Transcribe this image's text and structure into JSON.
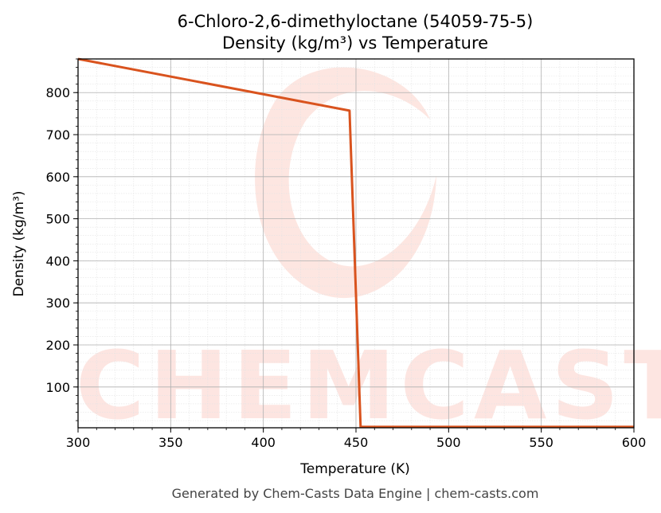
{
  "chart_data": {
    "type": "line",
    "title": "6-Chloro-2,6-dimethyloctane (54059-75-5)",
    "subtitle": "Density (kg/m³) vs Temperature",
    "xlabel": "Temperature (K)",
    "ylabel": "Density (kg/m³)",
    "xlim": [
      300,
      600
    ],
    "ylim": [
      3,
      880
    ],
    "xticks": [
      300,
      350,
      400,
      450,
      500,
      550,
      600
    ],
    "yticks": [
      100,
      200,
      300,
      400,
      500,
      600,
      700,
      800
    ],
    "grid": true,
    "minor_grid": true,
    "series": [
      {
        "color": "#d9531e",
        "x": [
          300,
          446.5,
          452.5,
          600
        ],
        "y": [
          880,
          757,
          5,
          5
        ]
      }
    ]
  },
  "watermark": {
    "text": "CHEMCASTS",
    "color": "#fde3de"
  },
  "footer": "Generated by Chem-Casts Data Engine | chem-casts.com"
}
